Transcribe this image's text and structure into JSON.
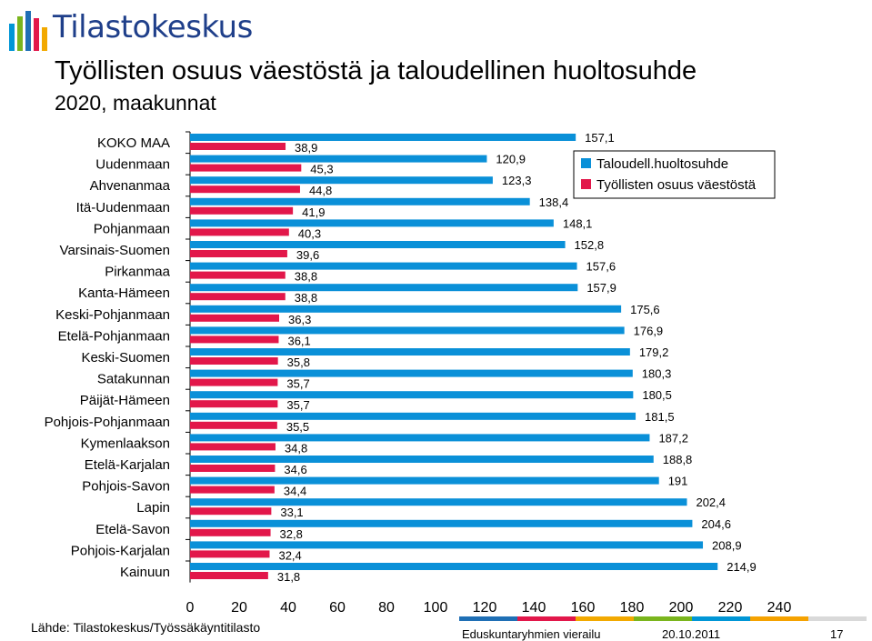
{
  "header": {
    "logo_text": "Tilastokeskus",
    "title": "Työllisten osuus väestöstä ja taloudellinen huoltosuhde",
    "subtitle": "2020, maakunnat"
  },
  "source": "Lähde: Tilastokeskus/Työssäkäyntitilasto",
  "footer": {
    "event": "Eduskuntaryhmien vierailu",
    "date": "20.10.2011",
    "page": "17",
    "colors": [
      "#1f6fb5",
      "#e2174a",
      "#f2a900",
      "#7ab51d",
      "#0096d6",
      "#f5a200",
      "#d9d9d9"
    ]
  },
  "chart_data": {
    "type": "bar",
    "orientation": "horizontal",
    "categories": [
      "KOKO MAA",
      "Uudenmaan",
      "Ahvenanmaa",
      "Itä-Uudenmaan",
      "Pohjanmaan",
      "Varsinais-Suomen",
      "Pirkanmaa",
      "Kanta-Hämeen",
      "Keski-Pohjanmaan",
      "Etelä-Pohjanmaan",
      "Keski-Suomen",
      "Satakunnan",
      "Päijät-Hämeen",
      "Pohjois-Pohjanmaan",
      "Kymenlaakson",
      "Etelä-Karjalan",
      "Pohjois-Savon",
      "Lapin",
      "Etelä-Savon",
      "Pohjois-Karjalan",
      "Kainuun"
    ],
    "series": [
      {
        "name": "Taloudell.huoltosuhde",
        "color": "#0a90d8",
        "values": [
          157.1,
          120.9,
          123.3,
          138.4,
          148.1,
          152.8,
          157.6,
          157.9,
          175.6,
          176.9,
          179.2,
          180.3,
          180.5,
          181.5,
          187.2,
          188.8,
          191,
          202.4,
          204.6,
          208.9,
          214.9
        ],
        "labels": [
          "157,1",
          "120,9",
          "123,3",
          "138,4",
          "148,1",
          "152,8",
          "157,6",
          "157,9",
          "175,6",
          "176,9",
          "179,2",
          "180,3",
          "180,5",
          "181,5",
          "187,2",
          "188,8",
          "191",
          "202,4",
          "204,6",
          "208,9",
          "214,9"
        ]
      },
      {
        "name": "Työllisten osuus väestöstä",
        "color": "#e2174a",
        "values": [
          38.9,
          45.3,
          44.8,
          41.9,
          40.3,
          39.6,
          38.8,
          38.8,
          36.3,
          36.1,
          35.8,
          35.7,
          35.7,
          35.5,
          34.8,
          34.6,
          34.4,
          33.1,
          32.8,
          32.4,
          31.8
        ],
        "labels": [
          "38,9",
          "45,3",
          "44,8",
          "41,9",
          "40,3",
          "39,6",
          "38,8",
          "38,8",
          "36,3",
          "36,1",
          "35,8",
          "35,7",
          "35,7",
          "35,5",
          "34,8",
          "34,6",
          "34,4",
          "33,1",
          "32,8",
          "32,4",
          "31,8"
        ]
      }
    ],
    "xlim": [
      0,
      240
    ],
    "xticks": [
      0,
      20,
      40,
      60,
      80,
      100,
      120,
      140,
      160,
      180,
      200,
      220,
      240
    ],
    "grid": false,
    "legend_position": "top-right"
  }
}
